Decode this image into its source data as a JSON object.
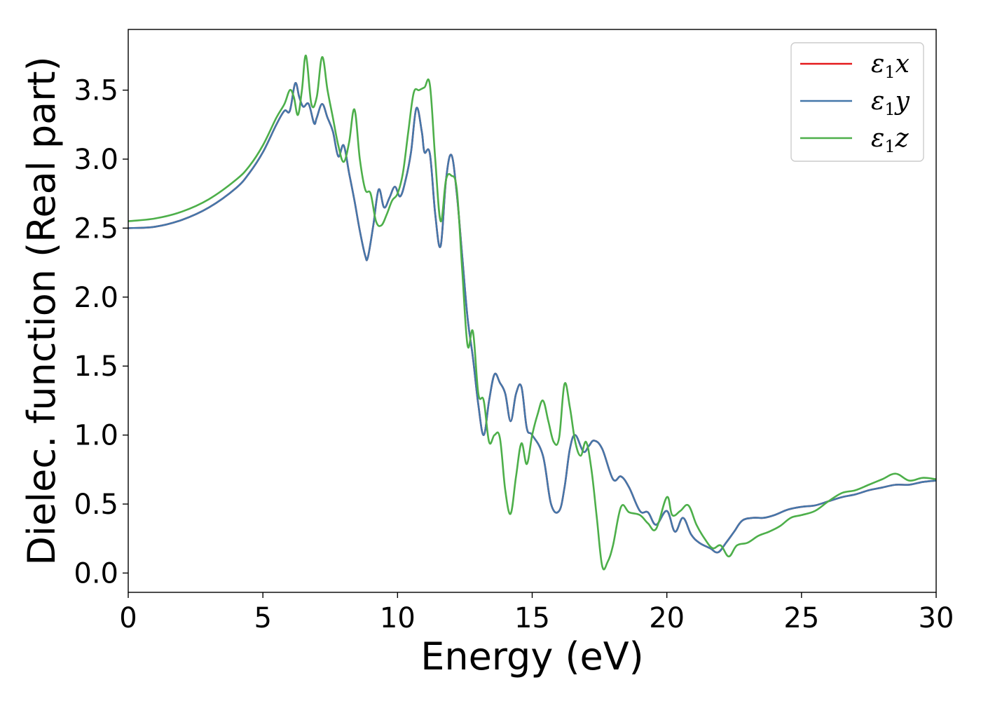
{
  "chart_data": {
    "type": "line",
    "xlabel": "Energy (eV)",
    "ylabel": "Dielec. function (Real part)",
    "xlim": [
      0,
      30
    ],
    "ylim": [
      -0.14,
      3.94
    ],
    "xticks": [
      "0",
      "5",
      "10",
      "15",
      "20",
      "25",
      "30"
    ],
    "yticks": [
      "0.0",
      "0.5",
      "1.0",
      "1.5",
      "2.0",
      "2.5",
      "3.0",
      "3.5"
    ],
    "grid": false,
    "legend": {
      "placement": "top-right",
      "entries": [
        {
          "base": "ε",
          "sub": "1",
          "suffix": "x"
        },
        {
          "base": "ε",
          "sub": "1",
          "suffix": "y"
        },
        {
          "base": "ε",
          "sub": "1",
          "suffix": "z"
        }
      ]
    },
    "series": [
      {
        "color": "#e41a1c",
        "x": [
          0,
          1,
          2,
          3,
          4,
          4.5,
          5,
          5.5,
          5.8,
          6.0,
          6.2,
          6.35,
          6.5,
          6.7,
          6.9,
          7.0,
          7.2,
          7.4,
          7.6,
          7.8,
          8.0,
          8.2,
          8.4,
          8.6,
          8.8,
          8.9,
          9.1,
          9.3,
          9.5,
          9.7,
          9.9,
          10.1,
          10.3,
          10.5,
          10.7,
          10.9,
          11.0,
          11.2,
          11.4,
          11.6,
          11.8,
          12.0,
          12.2,
          12.4,
          12.6,
          12.8,
          13.0,
          13.2,
          13.4,
          13.6,
          13.8,
          14.0,
          14.2,
          14.4,
          14.6,
          14.8,
          15.0,
          15.4,
          15.7,
          16.0,
          16.2,
          16.4,
          16.6,
          16.9,
          17.1,
          17.3,
          17.6,
          18.0,
          18.3,
          18.6,
          19.0,
          19.3,
          19.6,
          20.0,
          20.3,
          20.6,
          20.9,
          21.2,
          21.6,
          21.9,
          22.2,
          22.5,
          22.8,
          23.2,
          23.6,
          24.0,
          24.5,
          25.0,
          25.5,
          26.0,
          26.5,
          27.0,
          27.5,
          28.0,
          28.5,
          29.0,
          29.5,
          30.0
        ],
        "y": [
          2.5,
          2.51,
          2.56,
          2.65,
          2.79,
          2.9,
          3.05,
          3.25,
          3.35,
          3.35,
          3.55,
          3.45,
          3.38,
          3.4,
          3.26,
          3.3,
          3.4,
          3.3,
          3.2,
          3.02,
          3.1,
          2.9,
          2.7,
          2.48,
          2.3,
          2.29,
          2.52,
          2.78,
          2.65,
          2.72,
          2.8,
          2.73,
          2.85,
          3.05,
          3.37,
          3.2,
          3.05,
          3.04,
          2.6,
          2.37,
          2.85,
          3.03,
          2.75,
          2.3,
          1.85,
          1.56,
          1.22,
          1.0,
          1.25,
          1.44,
          1.38,
          1.3,
          1.1,
          1.3,
          1.35,
          1.05,
          1.0,
          0.85,
          0.5,
          0.45,
          0.62,
          0.9,
          1.0,
          0.88,
          0.92,
          0.96,
          0.9,
          0.68,
          0.7,
          0.62,
          0.45,
          0.44,
          0.35,
          0.45,
          0.3,
          0.4,
          0.28,
          0.22,
          0.18,
          0.15,
          0.22,
          0.3,
          0.38,
          0.4,
          0.4,
          0.42,
          0.46,
          0.48,
          0.49,
          0.52,
          0.55,
          0.57,
          0.6,
          0.62,
          0.64,
          0.64,
          0.66,
          0.67
        ]
      },
      {
        "color": "#4477aa",
        "x": [
          0,
          1,
          2,
          3,
          4,
          4.5,
          5,
          5.5,
          5.8,
          6.0,
          6.2,
          6.35,
          6.5,
          6.7,
          6.9,
          7.0,
          7.2,
          7.4,
          7.6,
          7.8,
          8.0,
          8.2,
          8.4,
          8.6,
          8.8,
          8.9,
          9.1,
          9.3,
          9.5,
          9.7,
          9.9,
          10.1,
          10.3,
          10.5,
          10.7,
          10.9,
          11.0,
          11.2,
          11.4,
          11.6,
          11.8,
          12.0,
          12.2,
          12.4,
          12.6,
          12.8,
          13.0,
          13.2,
          13.4,
          13.6,
          13.8,
          14.0,
          14.2,
          14.4,
          14.6,
          14.8,
          15.0,
          15.4,
          15.7,
          16.0,
          16.2,
          16.4,
          16.6,
          16.9,
          17.1,
          17.3,
          17.6,
          18.0,
          18.3,
          18.6,
          19.0,
          19.3,
          19.6,
          20.0,
          20.3,
          20.6,
          20.9,
          21.2,
          21.6,
          21.9,
          22.2,
          22.5,
          22.8,
          23.2,
          23.6,
          24.0,
          24.5,
          25.0,
          25.5,
          26.0,
          26.5,
          27.0,
          27.5,
          28.0,
          28.5,
          29.0,
          29.5,
          30.0
        ],
        "y": [
          2.5,
          2.51,
          2.56,
          2.65,
          2.79,
          2.9,
          3.05,
          3.25,
          3.35,
          3.35,
          3.55,
          3.45,
          3.38,
          3.4,
          3.26,
          3.3,
          3.4,
          3.3,
          3.2,
          3.02,
          3.1,
          2.9,
          2.7,
          2.48,
          2.3,
          2.29,
          2.52,
          2.78,
          2.65,
          2.72,
          2.8,
          2.73,
          2.85,
          3.05,
          3.37,
          3.2,
          3.05,
          3.04,
          2.6,
          2.37,
          2.85,
          3.03,
          2.75,
          2.3,
          1.85,
          1.56,
          1.22,
          1.0,
          1.25,
          1.44,
          1.38,
          1.3,
          1.1,
          1.3,
          1.35,
          1.05,
          1.0,
          0.85,
          0.5,
          0.45,
          0.62,
          0.9,
          1.0,
          0.88,
          0.92,
          0.96,
          0.9,
          0.68,
          0.7,
          0.62,
          0.45,
          0.44,
          0.35,
          0.45,
          0.3,
          0.4,
          0.28,
          0.22,
          0.18,
          0.15,
          0.22,
          0.3,
          0.38,
          0.4,
          0.4,
          0.42,
          0.46,
          0.48,
          0.49,
          0.52,
          0.55,
          0.57,
          0.6,
          0.62,
          0.64,
          0.64,
          0.66,
          0.67
        ]
      },
      {
        "color": "#4daf4a",
        "x": [
          0,
          1,
          2,
          3,
          4,
          4.5,
          5,
          5.5,
          5.8,
          6.0,
          6.15,
          6.3,
          6.45,
          6.6,
          6.8,
          7.0,
          7.2,
          7.4,
          7.6,
          7.8,
          8.0,
          8.2,
          8.4,
          8.6,
          8.8,
          9.0,
          9.2,
          9.4,
          9.6,
          9.8,
          10.0,
          10.2,
          10.4,
          10.6,
          10.8,
          11.0,
          11.2,
          11.4,
          11.6,
          11.8,
          12.0,
          12.2,
          12.4,
          12.6,
          12.8,
          13.0,
          13.2,
          13.4,
          13.6,
          13.8,
          14.0,
          14.2,
          14.4,
          14.6,
          14.8,
          15.0,
          15.2,
          15.4,
          15.6,
          15.8,
          16.0,
          16.2,
          16.4,
          16.6,
          16.8,
          17.0,
          17.2,
          17.4,
          17.6,
          17.8,
          18.0,
          18.3,
          18.6,
          19.0,
          19.3,
          19.6,
          20.0,
          20.2,
          20.5,
          20.8,
          21.1,
          21.4,
          21.7,
          22.0,
          22.3,
          22.6,
          23.0,
          23.4,
          23.8,
          24.2,
          24.6,
          25.0,
          25.5,
          26.0,
          26.5,
          27.0,
          27.5,
          28.0,
          28.5,
          29.0,
          29.5,
          30.0
        ],
        "y": [
          2.55,
          2.57,
          2.62,
          2.71,
          2.85,
          2.95,
          3.1,
          3.3,
          3.4,
          3.5,
          3.45,
          3.32,
          3.5,
          3.75,
          3.4,
          3.45,
          3.74,
          3.5,
          3.3,
          3.1,
          2.98,
          3.12,
          3.36,
          3.0,
          2.78,
          2.75,
          2.55,
          2.52,
          2.6,
          2.7,
          2.75,
          2.9,
          3.2,
          3.48,
          3.5,
          3.52,
          3.54,
          3.0,
          2.55,
          2.85,
          2.88,
          2.78,
          2.2,
          1.65,
          1.75,
          1.3,
          1.25,
          0.95,
          1.0,
          0.98,
          0.6,
          0.43,
          0.7,
          0.94,
          0.79,
          1.0,
          1.15,
          1.25,
          1.1,
          0.95,
          0.98,
          1.37,
          1.2,
          0.95,
          0.85,
          0.95,
          0.75,
          0.4,
          0.05,
          0.08,
          0.2,
          0.48,
          0.44,
          0.42,
          0.36,
          0.32,
          0.55,
          0.42,
          0.45,
          0.49,
          0.35,
          0.25,
          0.18,
          0.2,
          0.12,
          0.2,
          0.22,
          0.27,
          0.3,
          0.34,
          0.4,
          0.42,
          0.45,
          0.52,
          0.58,
          0.6,
          0.64,
          0.68,
          0.72,
          0.67,
          0.69,
          0.68
        ]
      }
    ]
  }
}
